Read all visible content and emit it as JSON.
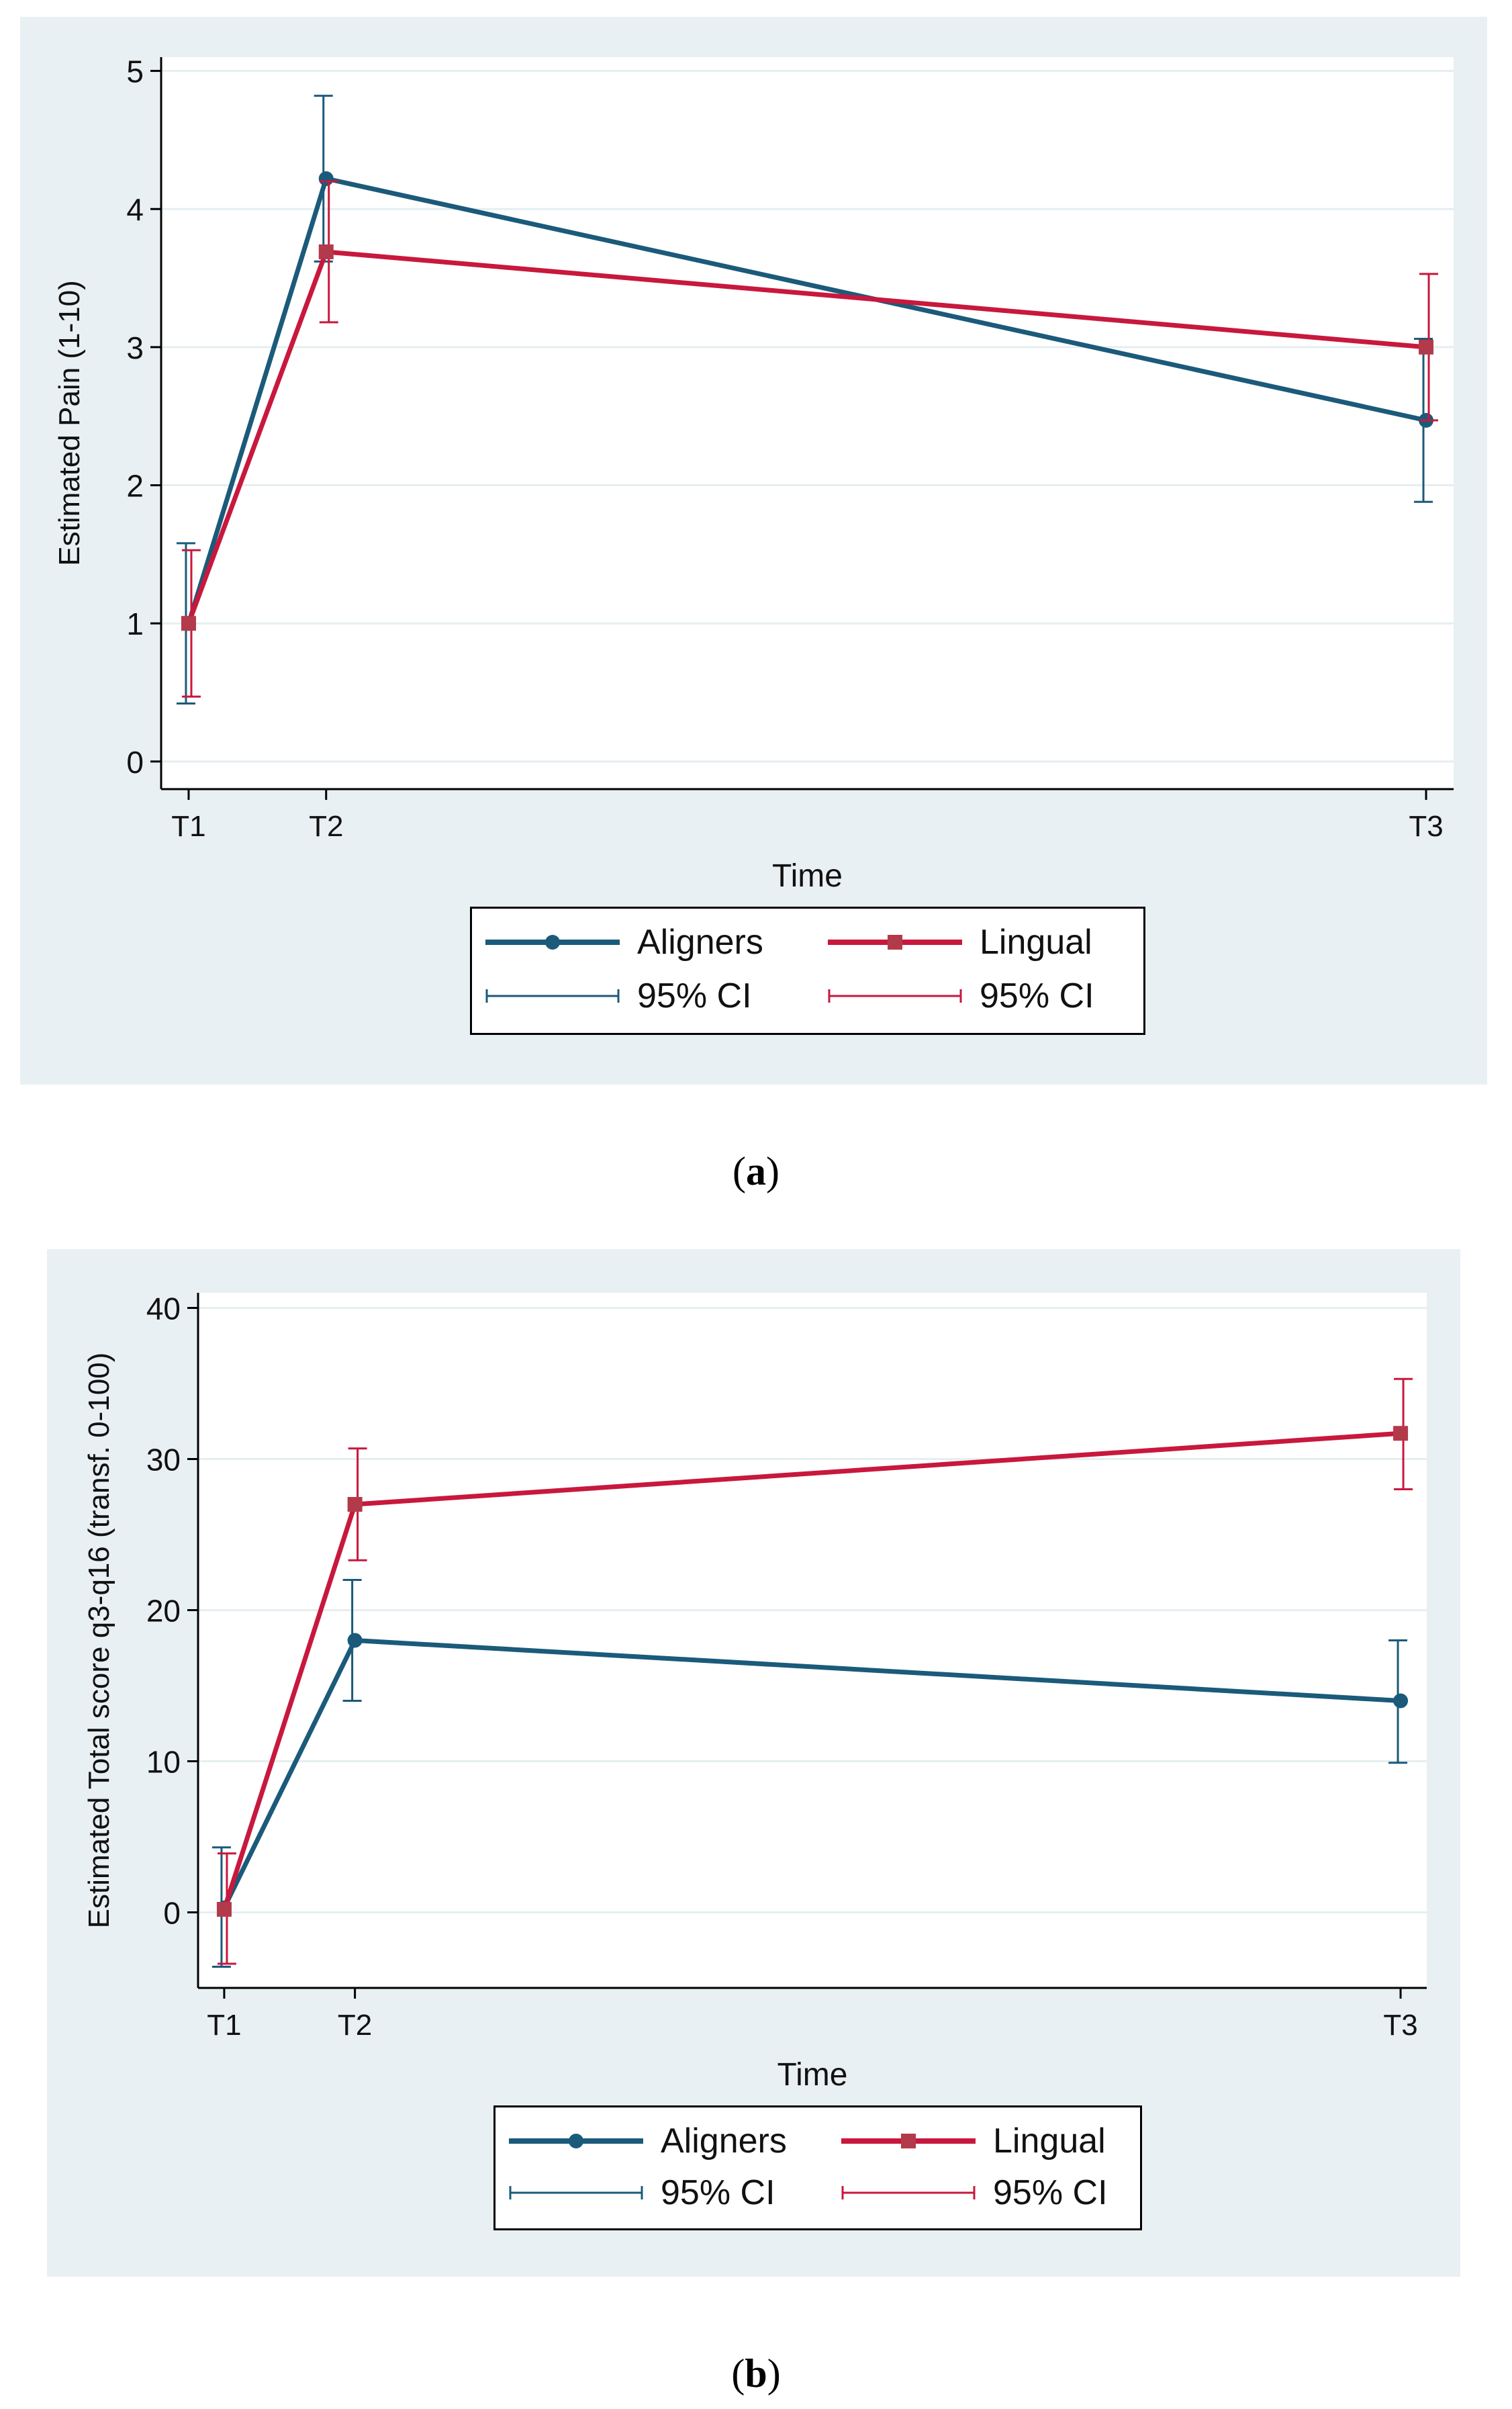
{
  "chart_data": [
    {
      "type": "line",
      "panel_label": "a",
      "title": "",
      "xlabel": "Time",
      "ylabel": "Estimated Pain (1-10)",
      "x_categories": [
        "T1",
        "T2",
        "T3"
      ],
      "x_positions": [
        1,
        2,
        10
      ],
      "xlim": [
        0.8,
        10.2
      ],
      "ylim": [
        -0.2,
        5.1
      ],
      "yticks": [
        0,
        1,
        2,
        3,
        4,
        5
      ],
      "grid": true,
      "legend_position": "bottom",
      "series": [
        {
          "name": "Aligners",
          "ci_label": "95% CI",
          "color": "#1b5a7a",
          "values": [
            1.0,
            4.22,
            2.47
          ],
          "ci_low": [
            0.42,
            3.62,
            1.88
          ],
          "ci_high": [
            1.58,
            4.82,
            3.06
          ]
        },
        {
          "name": "Lingual",
          "ci_label": "95% CI",
          "color": "#c8183d",
          "values": [
            1.0,
            3.69,
            3.0
          ],
          "ci_low": [
            0.47,
            3.18,
            2.47
          ],
          "ci_high": [
            1.53,
            4.2,
            3.53
          ]
        }
      ]
    },
    {
      "type": "line",
      "panel_label": "b",
      "title": "",
      "xlabel": "Time",
      "ylabel": "Estimated Total score q3-q16  (transf. 0-100)",
      "x_categories": [
        "T1",
        "T2",
        "T3"
      ],
      "x_positions": [
        1,
        2,
        10
      ],
      "xlim": [
        0.8,
        10.2
      ],
      "ylim": [
        -5,
        41
      ],
      "yticks": [
        0,
        10,
        20,
        30,
        40
      ],
      "grid": true,
      "legend_position": "bottom",
      "series": [
        {
          "name": "Aligners",
          "ci_label": "95% CI",
          "color": "#1b5a7a",
          "values": [
            0.3,
            18.0,
            14.0
          ],
          "ci_low": [
            -3.6,
            14.0,
            9.9
          ],
          "ci_high": [
            4.3,
            22.0,
            18.0
          ]
        },
        {
          "name": "Lingual",
          "ci_label": "95% CI",
          "color": "#c8183d",
          "values": [
            0.2,
            27.0,
            31.7
          ],
          "ci_low": [
            -3.4,
            23.3,
            28.0
          ],
          "ci_high": [
            3.9,
            30.7,
            35.3
          ]
        }
      ]
    }
  ]
}
